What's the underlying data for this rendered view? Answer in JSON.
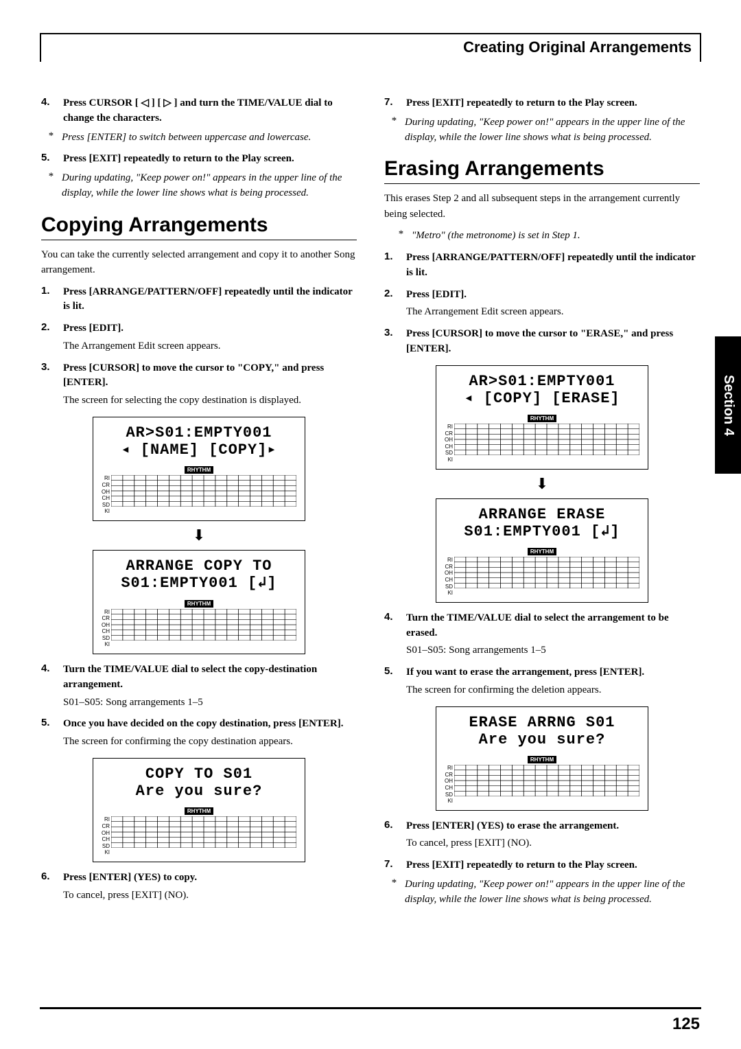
{
  "header": {
    "title": "Creating Original Arrangements"
  },
  "sideTab": "Section 4",
  "pageNumber": "125",
  "rhythm": {
    "label": "RHYTHM",
    "rows": [
      "RI",
      "CR",
      "OH",
      "CH",
      "SD",
      "KI"
    ]
  },
  "left": {
    "step4": "Press CURSOR [ ◁ ] [ ▷ ] and turn the TIME/VALUE dial to change the characters.",
    "note4": "Press [ENTER] to switch between uppercase and lowercase.",
    "step5": "Press [EXIT] repeatedly to return to the Play screen.",
    "note5": "During updating, \"Keep power on!\" appears in the upper line of the display, while the lower line shows what is being processed.",
    "heading": "Copying Arrangements",
    "intro": "You can take the currently selected arrangement and copy it to another Song arrangement.",
    "c1": "Press [ARRANGE/PATTERN/OFF] repeatedly until the indicator is lit.",
    "c2": "Press [EDIT].",
    "c2sub": "The Arrangement Edit screen appears.",
    "c3": "Press [CURSOR] to move the cursor to \"COPY,\" and press [ENTER].",
    "c3sub": "The screen for selecting the copy destination is displayed.",
    "lcd1a": "AR>S01:EMPTY001",
    "lcd1b": "◂ [NAME] [COPY]▸",
    "lcd2a": "ARRANGE COPY TO",
    "lcd2b": "S01:EMPTY001 [↲]",
    "c4": "Turn the TIME/VALUE dial to select the copy-destination arrangement.",
    "c4sub": "S01–S05: Song arrangements 1–5",
    "c5": "Once you have decided on the copy destination, press [ENTER].",
    "c5sub": "The screen for confirming the copy destination appears.",
    "lcd3a": "COPY TO S01",
    "lcd3b": "Are you sure?",
    "c6": "Press [ENTER] (YES) to copy.",
    "c6sub": "To cancel, press [EXIT] (NO)."
  },
  "right": {
    "step7": "Press [EXIT] repeatedly to return to the Play screen.",
    "note7": "During updating, \"Keep power on!\" appears in the upper line of the display, while the lower line shows what is being processed.",
    "heading": "Erasing Arrangements",
    "intro": "This erases Step 2 and all subsequent steps in the arrangement currently being selected.",
    "noteMetro": "\"Metro\" (the metronome) is set in Step 1.",
    "e1": "Press [ARRANGE/PATTERN/OFF] repeatedly until the indicator is lit.",
    "e2": "Press [EDIT].",
    "e2sub": "The Arrangement Edit screen appears.",
    "e3": "Press [CURSOR] to move the cursor to \"ERASE,\" and press [ENTER].",
    "lcd1a": "AR>S01:EMPTY001",
    "lcd1b": "◂ [COPY] [ERASE]",
    "lcd2a": "ARRANGE ERASE",
    "lcd2b": "S01:EMPTY001 [↲]",
    "e4": "Turn the TIME/VALUE dial to select the arrangement to be erased.",
    "e4sub": "S01–S05: Song arrangements 1–5",
    "e5": "If you want to erase the arrangement, press [ENTER].",
    "e5sub": "The screen for confirming the deletion appears.",
    "lcd3a": "ERASE ARRNG S01",
    "lcd3b": "Are you sure?",
    "e6": "Press [ENTER] (YES) to erase the arrangement.",
    "e6sub": "To cancel, press [EXIT] (NO).",
    "e7": "Press [EXIT] repeatedly to return to the Play screen.",
    "note7b": "During updating, \"Keep power on!\" appears in the upper line of the display, while the lower line shows what is being processed."
  }
}
